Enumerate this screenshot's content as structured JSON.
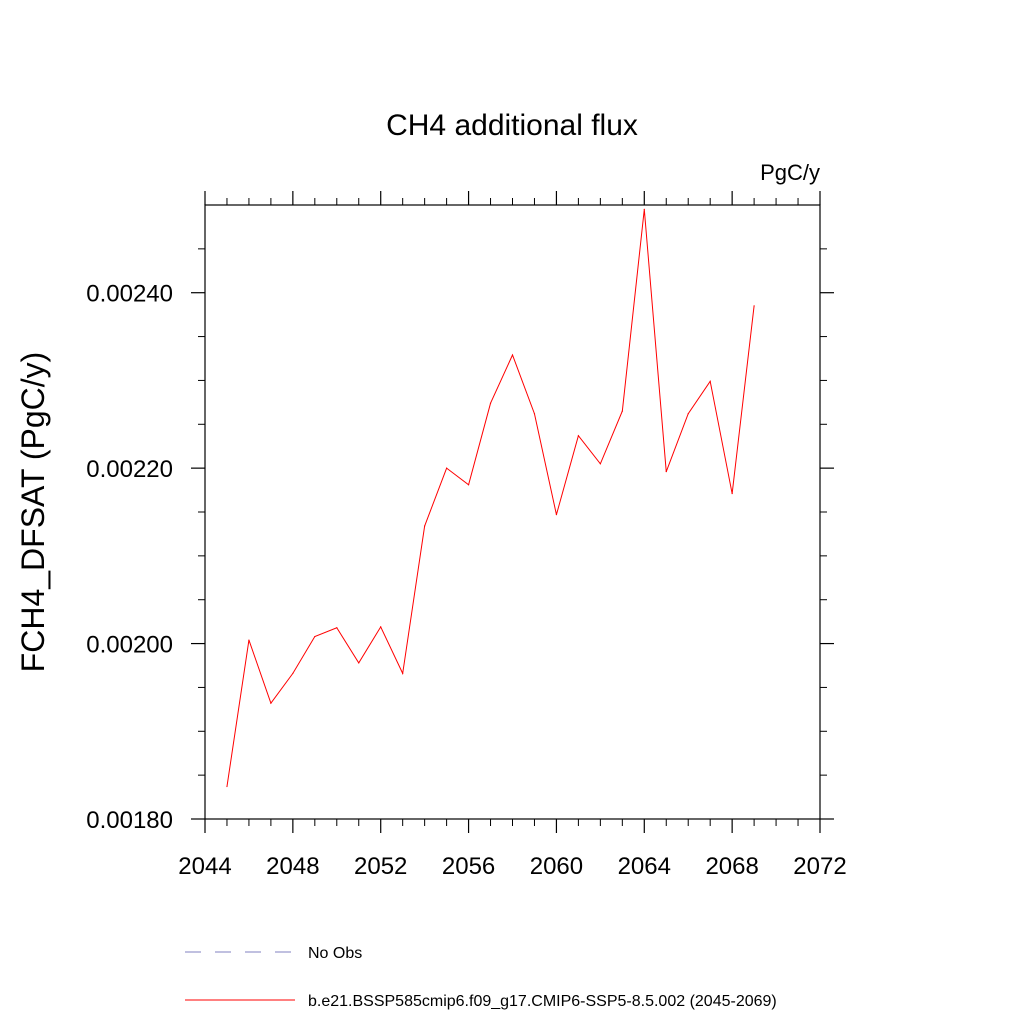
{
  "chart_data": {
    "type": "line",
    "title": "CH4 additional flux",
    "units": "PgC/y",
    "xlabel": "",
    "ylabel": "FCH4_DFSAT  (PgC/y)",
    "xlim": [
      2044,
      2072
    ],
    "ylim": [
      0.0018,
      0.0025
    ],
    "x_ticks": [
      2044,
      2048,
      2052,
      2056,
      2060,
      2064,
      2068,
      2072
    ],
    "x_tick_labels": [
      "2044",
      "2048",
      "2052",
      "2056",
      "2060",
      "2064",
      "2068",
      "2072"
    ],
    "y_ticks": [
      0.0018,
      0.002,
      0.0022,
      0.0024
    ],
    "y_tick_labels": [
      "0.00180",
      "0.00200",
      "0.00220",
      "0.00240"
    ],
    "grid": false,
    "legend_position": "bottom",
    "series": [
      {
        "name": "b.e21.BSSP585cmip6.f09_g17.CMIP6-SSP5-8.5.002 (2045-2069)",
        "color": "#ff0000",
        "style": "solid",
        "x": [
          2045,
          2046,
          2047,
          2048,
          2049,
          2050,
          2051,
          2052,
          2053,
          2054,
          2055,
          2056,
          2057,
          2058,
          2059,
          2060,
          2061,
          2062,
          2063,
          2064,
          2065,
          2066,
          2067,
          2068,
          2069
        ],
        "y": [
          0.001837,
          0.002004,
          0.001932,
          0.001966,
          0.002008,
          0.002018,
          0.001978,
          0.002019,
          0.001966,
          0.002134,
          0.0022,
          0.002181,
          0.002274,
          0.002329,
          0.002262,
          0.002147,
          0.002237,
          0.002205,
          0.002265,
          0.002495,
          0.002196,
          0.002262,
          0.002299,
          0.002171,
          0.002385
        ]
      },
      {
        "name": "No Obs",
        "color": "#8080c0",
        "style": "dashed",
        "x": [],
        "y": []
      }
    ]
  }
}
